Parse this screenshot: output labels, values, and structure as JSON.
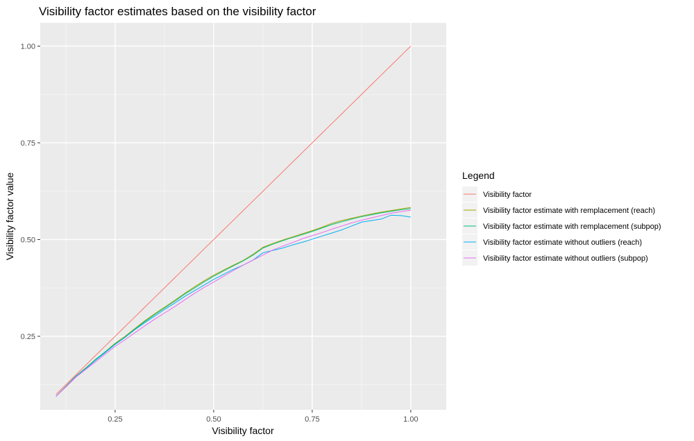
{
  "chart_data": {
    "type": "line",
    "title": "Visibility factor estimates based on the visibility factor",
    "xlabel": "Visibility factor",
    "ylabel": "Visibility factor value",
    "xlim": [
      0.06,
      1.09
    ],
    "ylim": [
      0.06,
      1.06
    ],
    "xticks": [
      0.25,
      0.5,
      0.75,
      1.0
    ],
    "xtick_labels": [
      "0.25",
      "0.50",
      "0.75",
      "1.00"
    ],
    "yticks": [
      0.25,
      0.5,
      0.75,
      1.0
    ],
    "ytick_labels": [
      "0.25",
      "0.50",
      "0.75",
      "1.00"
    ],
    "grid": true,
    "legend": {
      "title": "Legend",
      "position": "right"
    },
    "x": [
      0.1,
      0.125,
      0.15,
      0.175,
      0.2,
      0.225,
      0.25,
      0.275,
      0.3,
      0.325,
      0.35,
      0.375,
      0.4,
      0.425,
      0.45,
      0.475,
      0.5,
      0.525,
      0.55,
      0.575,
      0.6,
      0.625,
      0.65,
      0.675,
      0.7,
      0.725,
      0.75,
      0.775,
      0.8,
      0.825,
      0.85,
      0.875,
      0.9,
      0.925,
      0.95,
      0.975,
      1.0
    ],
    "series": [
      {
        "name": "Visibility factor",
        "color": "#F8766D",
        "values": [
          0.1,
          0.125,
          0.15,
          0.175,
          0.2,
          0.225,
          0.25,
          0.275,
          0.3,
          0.325,
          0.35,
          0.375,
          0.4,
          0.425,
          0.45,
          0.475,
          0.5,
          0.525,
          0.55,
          0.575,
          0.6,
          0.625,
          0.65,
          0.675,
          0.7,
          0.725,
          0.75,
          0.775,
          0.8,
          0.825,
          0.85,
          0.875,
          0.9,
          0.925,
          0.95,
          0.975,
          1.0
        ]
      },
      {
        "name": "Visibility factor estimate with remplacement (reach)",
        "color": "#A3A500",
        "values": [
          0.095,
          0.121,
          0.147,
          0.168,
          0.19,
          0.21,
          0.232,
          0.25,
          0.27,
          0.29,
          0.308,
          0.325,
          0.342,
          0.36,
          0.377,
          0.393,
          0.408,
          0.421,
          0.434,
          0.446,
          0.462,
          0.48,
          0.49,
          0.499,
          0.507,
          0.515,
          0.523,
          0.532,
          0.542,
          0.549,
          0.555,
          0.561,
          0.566,
          0.571,
          0.575,
          0.579,
          0.583
        ]
      },
      {
        "name": "Visibility factor estimate with remplacement (subpop)",
        "color": "#00BF7D",
        "values": [
          0.095,
          0.12,
          0.146,
          0.167,
          0.19,
          0.21,
          0.23,
          0.248,
          0.268,
          0.288,
          0.306,
          0.323,
          0.34,
          0.358,
          0.374,
          0.39,
          0.405,
          0.419,
          0.432,
          0.445,
          0.46,
          0.478,
          0.488,
          0.497,
          0.505,
          0.513,
          0.521,
          0.53,
          0.539,
          0.546,
          0.553,
          0.559,
          0.564,
          0.569,
          0.573,
          0.577,
          0.58
        ]
      },
      {
        "name": "Visibility factor estimate without outliers (reach)",
        "color": "#00B0F6",
        "values": [
          0.095,
          0.12,
          0.146,
          0.166,
          0.188,
          0.208,
          0.229,
          0.247,
          0.267,
          0.285,
          0.302,
          0.319,
          0.335,
          0.352,
          0.367,
          0.382,
          0.397,
          0.41,
          0.423,
          0.434,
          0.447,
          0.466,
          0.472,
          0.478,
          0.486,
          0.493,
          0.501,
          0.509,
          0.517,
          0.525,
          0.535,
          0.545,
          0.549,
          0.553,
          0.563,
          0.562,
          0.558
        ]
      },
      {
        "name": "Visibility factor estimate without outliers (subpop)",
        "color": "#E76BF3",
        "values": [
          0.095,
          0.119,
          0.144,
          0.164,
          0.184,
          0.204,
          0.224,
          0.241,
          0.259,
          0.277,
          0.294,
          0.31,
          0.326,
          0.343,
          0.36,
          0.376,
          0.39,
          0.405,
          0.42,
          0.434,
          0.447,
          0.46,
          0.473,
          0.483,
          0.492,
          0.502,
          0.51,
          0.518,
          0.527,
          0.535,
          0.543,
          0.55,
          0.556,
          0.562,
          0.568,
          0.572,
          0.576
        ]
      }
    ]
  }
}
